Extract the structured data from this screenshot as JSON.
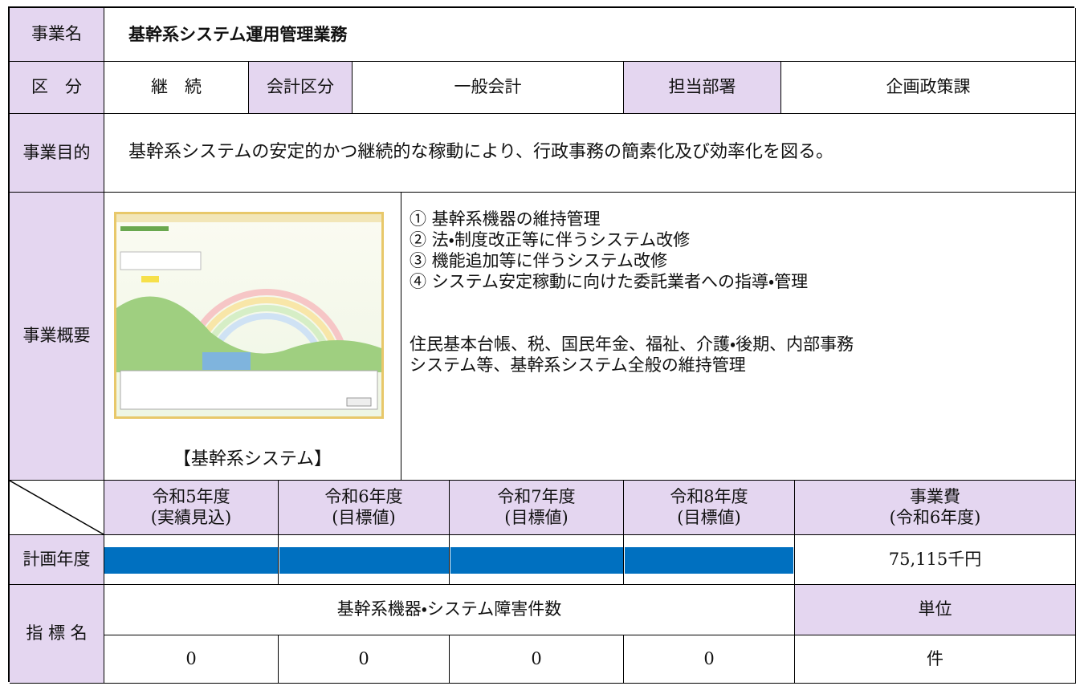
{
  "rows": {
    "name": {
      "label": "事業名",
      "value": "基幹系システム運用管理業務"
    },
    "category": {
      "label": "区　分",
      "value": "継　続",
      "account_label": "会計区分",
      "account": "一般会計",
      "dept_label": "担当部署",
      "dept": "企画政策課"
    },
    "purpose": {
      "label": "事業目的",
      "value": "基幹系システムの安定的かつ継続的な稼動により、行政事務の簡素化及び効率化を図る。"
    },
    "overview": {
      "label": "事業概要",
      "image_caption": "【基幹系システム】",
      "items": [
        "① 基幹系機器の維持管理",
        "② 法・制度改正等に伴うシステム改修",
        "③ 機能追加等に伴うシステム改修",
        "④ システム安定稼動に向けた委託業者への指導・管理"
      ],
      "note_lines": [
        "住民基本台帳、税、国民年金、福祉、介護・後期、内部事務",
        "システム等、基幹系システム全般の維持管理"
      ]
    },
    "schedule_header": {
      "years": [
        [
          "令和5年度",
          "(実績見込)"
        ],
        [
          "令和6年度",
          "(目標値)"
        ],
        [
          "令和7年度",
          "(目標値)"
        ],
        [
          "令和8年度",
          "(目標値)"
        ]
      ],
      "cost": [
        "事業費",
        "(令和6年度)"
      ]
    },
    "plan": {
      "label": "計画年度",
      "cost": "75,115千円"
    },
    "indicator": {
      "label": "指 標 名",
      "name": "基幹系機器・システム障害件数",
      "unit_label": "単位",
      "values": [
        0,
        0,
        0,
        0
      ],
      "unit": "件"
    }
  }
}
